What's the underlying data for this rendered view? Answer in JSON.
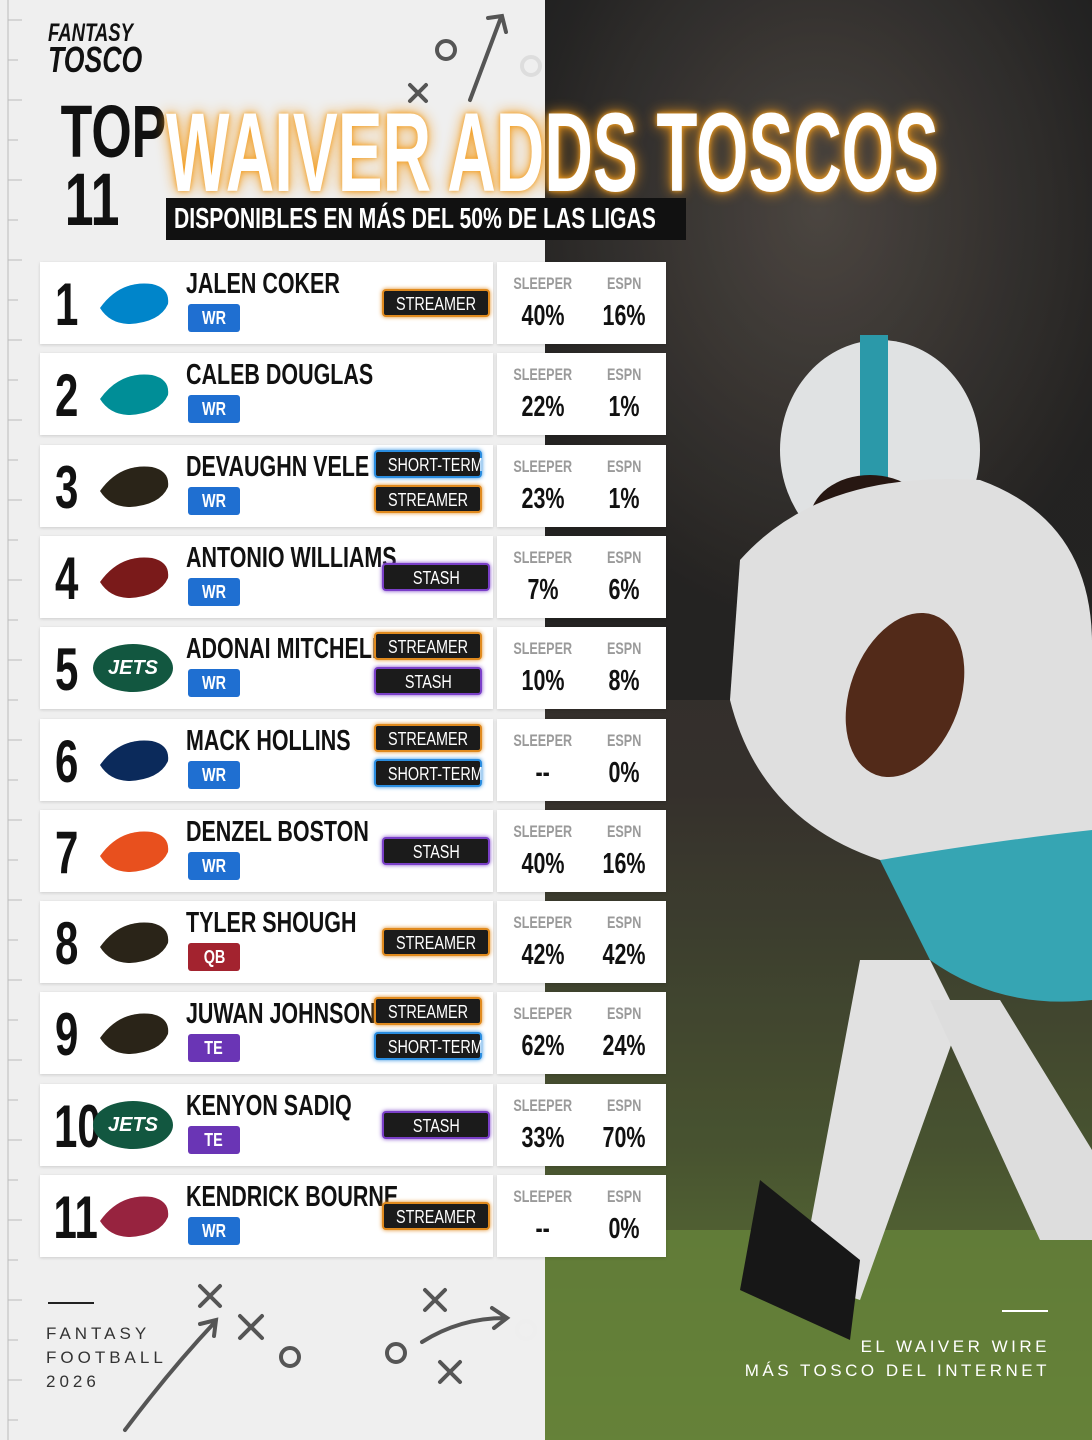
{
  "brand": {
    "line1": "FANTASY",
    "line2": "TOSCO"
  },
  "header": {
    "top": "TOP",
    "count": 11,
    "title": "WAIVER ADDS TOSCOS",
    "subtitle": "DISPONIBLES EN MÁS DEL 50% DE LAS LIGAS"
  },
  "columns": {
    "sleeper": "SLEEPER",
    "espn": "ESPN"
  },
  "rows": [
    {
      "rank": 1,
      "name": "JALEN COKER",
      "position": {
        "label": "WR",
        "color": "#1f6fd1"
      },
      "logo": {
        "color": "#0085ca"
      },
      "tags": [
        {
          "label": "STREAMER",
          "color": "#e08a1e"
        }
      ],
      "sleeper": "40%",
      "espn": "16%"
    },
    {
      "rank": 2,
      "name": "CALEB DOUGLAS",
      "position": {
        "label": "WR",
        "color": "#1f6fd1"
      },
      "logo": {
        "color": "#008e97"
      },
      "tags": [],
      "sleeper": "22%",
      "espn": "1%"
    },
    {
      "rank": 3,
      "name": "DEVAUGHN VELE",
      "position": {
        "label": "WR",
        "color": "#1f6fd1"
      },
      "logo": {
        "color": "#2a2418"
      },
      "tags": [
        {
          "label": "SHORT-TERM",
          "color": "#2a8de0"
        },
        {
          "label": "STREAMER",
          "color": "#e08a1e"
        }
      ],
      "sleeper": "23%",
      "espn": "1%"
    },
    {
      "rank": 4,
      "name": "ANTONIO WILLIAMS",
      "position": {
        "label": "WR",
        "color": "#1f6fd1"
      },
      "logo": {
        "color": "#7a1a1a"
      },
      "tags": [
        {
          "label": "STASH",
          "color": "#7a3fc8"
        }
      ],
      "sleeper": "7%",
      "espn": "6%"
    },
    {
      "rank": 5,
      "name": "ADONAI MITCHELL",
      "position": {
        "label": "WR",
        "color": "#1f6fd1"
      },
      "logo": {
        "color": "#125740",
        "text": "JETS"
      },
      "tags": [
        {
          "label": "STREAMER",
          "color": "#e08a1e"
        },
        {
          "label": "STASH",
          "color": "#7a3fc8"
        }
      ],
      "sleeper": "10%",
      "espn": "8%"
    },
    {
      "rank": 6,
      "name": "MACK HOLLINS",
      "position": {
        "label": "WR",
        "color": "#1f6fd1"
      },
      "logo": {
        "color": "#0b2a5b"
      },
      "tags": [
        {
          "label": "STREAMER",
          "color": "#e08a1e"
        },
        {
          "label": "SHORT-TERM",
          "color": "#2a8de0"
        }
      ],
      "sleeper": "--",
      "espn": "0%"
    },
    {
      "rank": 7,
      "name": "DENZEL BOSTON",
      "position": {
        "label": "WR",
        "color": "#1f6fd1"
      },
      "logo": {
        "color": "#e8501e"
      },
      "tags": [
        {
          "label": "STASH",
          "color": "#7a3fc8"
        }
      ],
      "sleeper": "40%",
      "espn": "16%"
    },
    {
      "rank": 8,
      "name": "TYLER SHOUGH",
      "position": {
        "label": "QB",
        "color": "#a3232f"
      },
      "logo": {
        "color": "#2a2418"
      },
      "tags": [
        {
          "label": "STREAMER",
          "color": "#e08a1e"
        }
      ],
      "sleeper": "42%",
      "espn": "42%"
    },
    {
      "rank": 9,
      "name": "JUWAN JOHNSON",
      "position": {
        "label": "TE",
        "color": "#6a35b5"
      },
      "logo": {
        "color": "#2a2418"
      },
      "tags": [
        {
          "label": "STREAMER",
          "color": "#e08a1e"
        },
        {
          "label": "SHORT-TERM",
          "color": "#2a8de0"
        }
      ],
      "sleeper": "62%",
      "espn": "24%"
    },
    {
      "rank": 10,
      "name": "KENYON SADIQ",
      "position": {
        "label": "TE",
        "color": "#6a35b5"
      },
      "logo": {
        "color": "#125740",
        "text": "JETS"
      },
      "tags": [
        {
          "label": "STASH",
          "color": "#7a3fc8"
        }
      ],
      "sleeper": "33%",
      "espn": "70%"
    },
    {
      "rank": 11,
      "name": "KENDRICK BOURNE",
      "position": {
        "label": "WR",
        "color": "#1f6fd1"
      },
      "logo": {
        "color": "#97233f"
      },
      "tags": [
        {
          "label": "STREAMER",
          "color": "#e08a1e"
        }
      ],
      "sleeper": "--",
      "espn": "0%"
    }
  ],
  "footer": {
    "left": [
      "FANTASY",
      "FOOTBALL",
      "2026"
    ],
    "right": [
      "EL WAIVER WIRE",
      "MÁS TOSCO DEL INTERNET"
    ]
  }
}
